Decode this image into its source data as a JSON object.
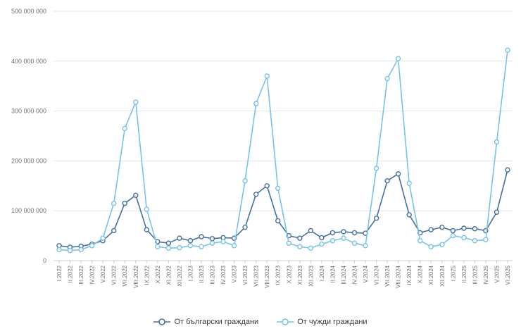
{
  "chart_data": {
    "type": "line",
    "title": "",
    "xlabel": "",
    "ylabel": "",
    "grid": true,
    "legend_position": "bottom",
    "x_labels_rotated": true,
    "ylim": [
      0,
      500000000
    ],
    "ytick_step": 100000000,
    "ytick_labels": [
      "0",
      "100 000 000",
      "200 000 000",
      "300 000 000",
      "400 000 000",
      "500 000 000"
    ],
    "categories": [
      "I.2022",
      "II.2022",
      "III.2022",
      "IV.2022",
      "V.2022",
      "VI.2022",
      "VII.2022",
      "VIII.2022",
      "IX.2022",
      "X.2022",
      "XI.2022",
      "XII.2022",
      "I.2023",
      "II.2023",
      "III.2023",
      "IV.2023",
      "V.2023",
      "VI.2023",
      "VII.2023",
      "VIII.2023",
      "IX.2023",
      "X.2023",
      "XI.2023",
      "XII.2023",
      "I.2024",
      "II.2024",
      "III.2024",
      "IV.2024",
      "V.2024",
      "VI.2024",
      "VII.2024",
      "VIII.2024",
      "IX.2024",
      "X.2024",
      "XI.2024",
      "XII.2024",
      "I.2025",
      "II.2025",
      "III.2025",
      "IV.2025",
      "V.2025",
      "VI.2025"
    ],
    "series": [
      {
        "key": "bulgarian",
        "name": "От български граждани",
        "color": "#44709d",
        "values": [
          30000000,
          27000000,
          29000000,
          33000000,
          40000000,
          60000000,
          115000000,
          131000000,
          62000000,
          38000000,
          35000000,
          45000000,
          40000000,
          48000000,
          44000000,
          46000000,
          45000000,
          67000000,
          133000000,
          150000000,
          80000000,
          50000000,
          45000000,
          60000000,
          46000000,
          56000000,
          58000000,
          56000000,
          55000000,
          85000000,
          160000000,
          174000000,
          92000000,
          56000000,
          62000000,
          67000000,
          60000000,
          65000000,
          64000000,
          60000000,
          97000000,
          182000000
        ]
      },
      {
        "key": "foreign",
        "name": "От чужди граждани",
        "color": "#78c3e8",
        "values": [
          22000000,
          20000000,
          22000000,
          30000000,
          45000000,
          115000000,
          265000000,
          318000000,
          103000000,
          28000000,
          25000000,
          26000000,
          30000000,
          28000000,
          35000000,
          38000000,
          30000000,
          160000000,
          315000000,
          370000000,
          145000000,
          35000000,
          28000000,
          25000000,
          33000000,
          40000000,
          45000000,
          35000000,
          30000000,
          185000000,
          365000000,
          405000000,
          155000000,
          40000000,
          28000000,
          32000000,
          50000000,
          46000000,
          40000000,
          42000000,
          238000000,
          422000000
        ]
      }
    ]
  }
}
